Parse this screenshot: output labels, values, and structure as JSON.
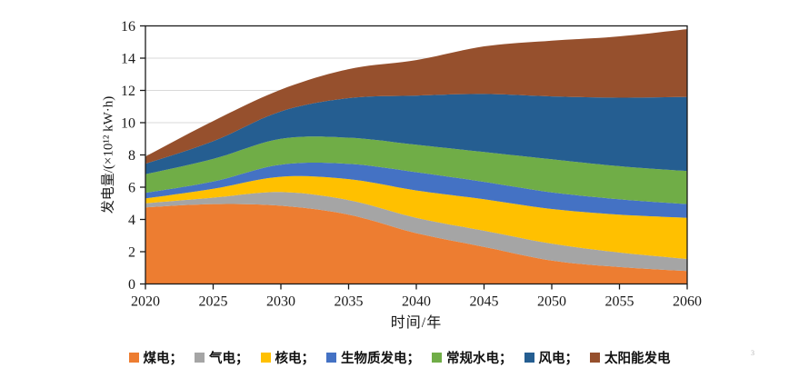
{
  "figure": {
    "background": "#ffffff",
    "watermark_artifact": "3"
  },
  "axes": {
    "x_label": "时间/年",
    "y_label": "发电量/(×10¹² kW·h)",
    "axis_color": "#1a1a1a",
    "grid_color": "#d9d9d9"
  },
  "legend": {
    "items": [
      {
        "key": "coal",
        "label": "煤电；",
        "color": "#ED7D31"
      },
      {
        "key": "gas",
        "label": "气电；",
        "color": "#A5A5A5"
      },
      {
        "key": "nuclear",
        "label": "核电；",
        "color": "#FFC000"
      },
      {
        "key": "biomass",
        "label": "生物质发电；",
        "color": "#4472C4"
      },
      {
        "key": "hydro",
        "label": "常规水电；",
        "color": "#70AD47"
      },
      {
        "key": "wind",
        "label": "风电；",
        "color": "#255E91"
      },
      {
        "key": "solar",
        "label": "太阳能发电",
        "color": "#96502D"
      }
    ]
  },
  "chart_data": {
    "type": "area",
    "stacked": true,
    "title": "",
    "xlabel": "时间/年",
    "ylabel": "发电量/(×10¹² kW·h)",
    "x": [
      2020,
      2025,
      2030,
      2035,
      2040,
      2045,
      2050,
      2055,
      2060
    ],
    "xlim": [
      2020,
      2060
    ],
    "ylim": [
      0,
      16
    ],
    "ytick_step": 2,
    "grid": true,
    "legend_position": "bottom",
    "series": [
      {
        "key": "coal",
        "name": "煤电",
        "color": "#ED7D31",
        "values": [
          4.75,
          4.95,
          4.85,
          4.3,
          3.15,
          2.3,
          1.45,
          1.05,
          0.8
        ]
      },
      {
        "key": "gas",
        "name": "气电",
        "color": "#A5A5A5",
        "values": [
          0.25,
          0.4,
          0.85,
          0.9,
          0.95,
          1.0,
          1.05,
          0.9,
          0.75
        ]
      },
      {
        "key": "nuclear",
        "name": "核电",
        "color": "#FFC000",
        "values": [
          0.3,
          0.55,
          0.95,
          1.3,
          1.7,
          1.95,
          2.15,
          2.35,
          2.55
        ]
      },
      {
        "key": "biomass",
        "name": "生物质发电",
        "color": "#4472C4",
        "values": [
          0.35,
          0.45,
          0.75,
          0.95,
          1.13,
          1.08,
          1.03,
          0.95,
          0.85
        ]
      },
      {
        "key": "hydro",
        "name": "常规水电",
        "color": "#70AD47",
        "values": [
          1.15,
          1.4,
          1.6,
          1.62,
          1.7,
          1.85,
          2.05,
          2.05,
          2.05
        ]
      },
      {
        "key": "wind",
        "name": "风电",
        "color": "#255E91",
        "values": [
          0.65,
          1.1,
          1.7,
          2.45,
          3.05,
          3.6,
          3.9,
          4.25,
          4.6
        ]
      },
      {
        "key": "solar",
        "name": "太阳能发电",
        "color": "#96502D",
        "values": [
          0.45,
          1.25,
          1.35,
          1.8,
          2.2,
          2.95,
          3.45,
          3.8,
          4.2
        ]
      }
    ]
  }
}
